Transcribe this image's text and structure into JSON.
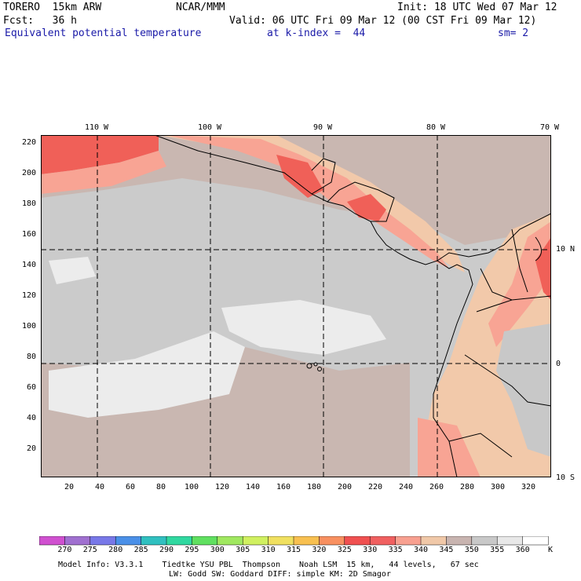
{
  "header": {
    "model": "TORERO  15km ARW",
    "center": "NCAR/MMM",
    "init": "Init: 18 UTC Wed 07 Mar 12",
    "fcst": "Fcst:   36 h",
    "valid": "Valid: 06 UTC Fri 09 Mar 12 (00 CST Fri 09 Mar 12)",
    "field": "Equivalent potential temperature",
    "level": "at k-index =  44",
    "smooth": "sm= 2"
  },
  "map": {
    "top_lon_labels": [
      "110 W",
      "100 W",
      "90 W",
      "80 W",
      "70 W"
    ],
    "right_lat_labels": [
      "10 N",
      "0",
      "10 S"
    ],
    "left_ticks": [
      "220",
      "200",
      "180",
      "160",
      "140",
      "120",
      "100",
      "80",
      "60",
      "40",
      "20"
    ],
    "bottom_ticks": [
      "20",
      "40",
      "60",
      "80",
      "100",
      "120",
      "140",
      "160",
      "180",
      "200",
      "220",
      "240",
      "260",
      "280",
      "300",
      "320"
    ]
  },
  "colorbar": {
    "labels": [
      "270",
      "275",
      "280",
      "285",
      "290",
      "295",
      "300",
      "305",
      "310",
      "315",
      "320",
      "325",
      "330",
      "335",
      "340",
      "345",
      "350",
      "355",
      "360"
    ],
    "unit": "K",
    "colors": [
      "#d050d0",
      "#a070d0",
      "#7878e8",
      "#4a90e8",
      "#30c0c0",
      "#30d8a0",
      "#60e060",
      "#a0e860",
      "#d0f060",
      "#f0e060",
      "#f8c050",
      "#f89060",
      "#f05050",
      "#f06060",
      "#f8a090",
      "#f0c8a8",
      "#c8b4b0",
      "#c8c8c8",
      "#e8e8e8",
      "#ffffff"
    ]
  },
  "footer": {
    "line1": "Model Info: V3.3.1    Tiedtke YSU PBL  Thompson    Noah LSM  15 km,   44 levels,   67 sec",
    "line2": "LW: Godd SW: Goddard DIFF: simple KM: 2D Smagor"
  }
}
